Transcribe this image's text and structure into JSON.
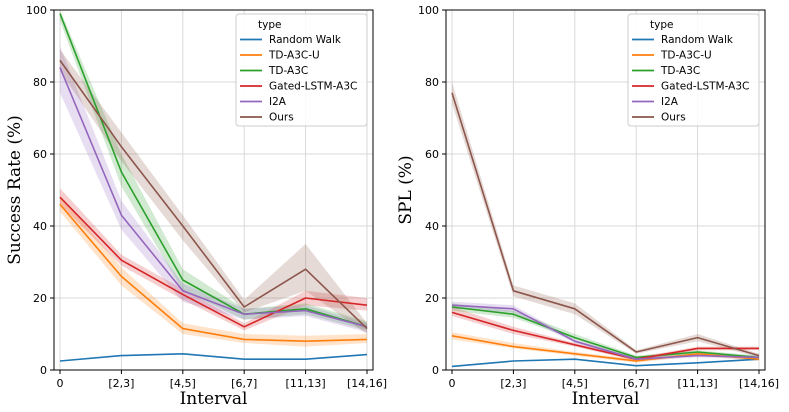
{
  "chart_data": [
    {
      "type": "line",
      "title": "",
      "xlabel": "Interval",
      "ylabel": "Success Rate (%)",
      "categories": [
        "0",
        "[2,3]",
        "[4,5]",
        "[6,7]",
        "[11,13]",
        "[14,16]"
      ],
      "ylim": [
        0,
        100
      ],
      "yticks": [
        0,
        20,
        40,
        60,
        80,
        100
      ],
      "grid": true,
      "legend": {
        "title": "type",
        "placement": "top-right"
      },
      "series": [
        {
          "name": "Random Walk",
          "color": "#1f77b4",
          "values": [
            2.5,
            4,
            4.5,
            3,
            3,
            4.3
          ],
          "band": [
            [
              2.5,
              2.5
            ],
            [
              4,
              4
            ],
            [
              4.5,
              4.5
            ],
            [
              3,
              3
            ],
            [
              3,
              3
            ],
            [
              4.3,
              4.3
            ]
          ]
        },
        {
          "name": "TD-A3C-U",
          "color": "#ff7f0e",
          "values": [
            46,
            26,
            11.5,
            8.5,
            8,
            8.5
          ],
          "band": [
            [
              44,
              48.5
            ],
            [
              23.5,
              28.5
            ],
            [
              10,
              13
            ],
            [
              7.5,
              10
            ],
            [
              6.5,
              9.5
            ],
            [
              7.5,
              10
            ]
          ]
        },
        {
          "name": "TD-A3C",
          "color": "#2ca02c",
          "values": [
            99,
            55,
            25,
            15.5,
            17,
            12
          ],
          "band": [
            [
              97,
              100
            ],
            [
              51,
              60
            ],
            [
              22,
              28
            ],
            [
              14,
              17
            ],
            [
              15.5,
              18.5
            ],
            [
              11,
              13.5
            ]
          ]
        },
        {
          "name": "Gated-LSTM-A3C",
          "color": "#d62728",
          "values": [
            48,
            30.5,
            21,
            12,
            20,
            18
          ],
          "band": [
            [
              46,
              50.5
            ],
            [
              29,
              32
            ],
            [
              19.5,
              22.5
            ],
            [
              11,
              13
            ],
            [
              18,
              22
            ],
            [
              16.5,
              20
            ]
          ]
        },
        {
          "name": "I2A",
          "color": "#9467bd",
          "values": [
            84,
            43,
            22,
            15.5,
            16.5,
            12
          ],
          "band": [
            [
              77,
              90
            ],
            [
              39,
              47
            ],
            [
              19,
              24
            ],
            [
              14,
              17
            ],
            [
              15,
              18
            ],
            [
              10.5,
              13
            ]
          ]
        },
        {
          "name": "Ours",
          "color": "#8c564b",
          "values": [
            86,
            62,
            40,
            17.5,
            28,
            11.5
          ],
          "band": [
            [
              83,
              89
            ],
            [
              58,
              66
            ],
            [
              36,
              43
            ],
            [
              16,
              19.5
            ],
            [
              22,
              35
            ],
            [
              10,
              13
            ]
          ]
        }
      ]
    },
    {
      "type": "line",
      "title": "",
      "xlabel": "Interval",
      "ylabel": "SPL (%)",
      "categories": [
        "0",
        "[2,3]",
        "[4,5]",
        "[6,7]",
        "[11,13]",
        "[14,16]"
      ],
      "ylim": [
        0,
        100
      ],
      "yticks": [
        0,
        20,
        40,
        60,
        80,
        100
      ],
      "grid": true,
      "legend": {
        "title": "type",
        "placement": "top-right"
      },
      "series": [
        {
          "name": "Random Walk",
          "color": "#1f77b4",
          "values": [
            1,
            2.5,
            3,
            1.2,
            2,
            3
          ],
          "band": [
            [
              1,
              1
            ],
            [
              2.5,
              2.5
            ],
            [
              3,
              3
            ],
            [
              1.2,
              1.2
            ],
            [
              2,
              2
            ],
            [
              3,
              3
            ]
          ]
        },
        {
          "name": "TD-A3C-U",
          "color": "#ff7f0e",
          "values": [
            9.5,
            6.5,
            4.5,
            2.5,
            4.5,
            3
          ],
          "band": [
            [
              8.5,
              10.5
            ],
            [
              6,
              7.5
            ],
            [
              4,
              5
            ],
            [
              2,
              3
            ],
            [
              4,
              5
            ],
            [
              2.5,
              3.5
            ]
          ]
        },
        {
          "name": "TD-A3C",
          "color": "#2ca02c",
          "values": [
            17.5,
            15.5,
            9,
            3.5,
            5,
            3.5
          ],
          "band": [
            [
              16.5,
              18.5
            ],
            [
              14.5,
              16.5
            ],
            [
              8.5,
              10
            ],
            [
              3,
              4
            ],
            [
              4.5,
              5.5
            ],
            [
              3,
              4
            ]
          ]
        },
        {
          "name": "Gated-LSTM-A3C",
          "color": "#d62728",
          "values": [
            16,
            11,
            7,
            3,
            6,
            6
          ],
          "band": [
            [
              15,
              17.5
            ],
            [
              10,
              12
            ],
            [
              6.5,
              7.5
            ],
            [
              2.5,
              3.5
            ],
            [
              5.5,
              6.5
            ],
            [
              5.5,
              6.5
            ]
          ]
        },
        {
          "name": "I2A",
          "color": "#9467bd",
          "values": [
            18,
            17,
            8,
            3,
            4,
            3.5
          ],
          "band": [
            [
              17,
              19
            ],
            [
              16,
              18
            ],
            [
              7.5,
              8.5
            ],
            [
              2.5,
              3.5
            ],
            [
              3.5,
              4.5
            ],
            [
              3,
              4
            ]
          ]
        },
        {
          "name": "Ours",
          "color": "#8c564b",
          "values": [
            77,
            22,
            17,
            5,
            9,
            4
          ],
          "band": [
            [
              74,
              80
            ],
            [
              20.5,
              23.5
            ],
            [
              15.5,
              18.5
            ],
            [
              4.5,
              5.5
            ],
            [
              8,
              10
            ],
            [
              3.5,
              4.5
            ]
          ]
        }
      ]
    }
  ]
}
